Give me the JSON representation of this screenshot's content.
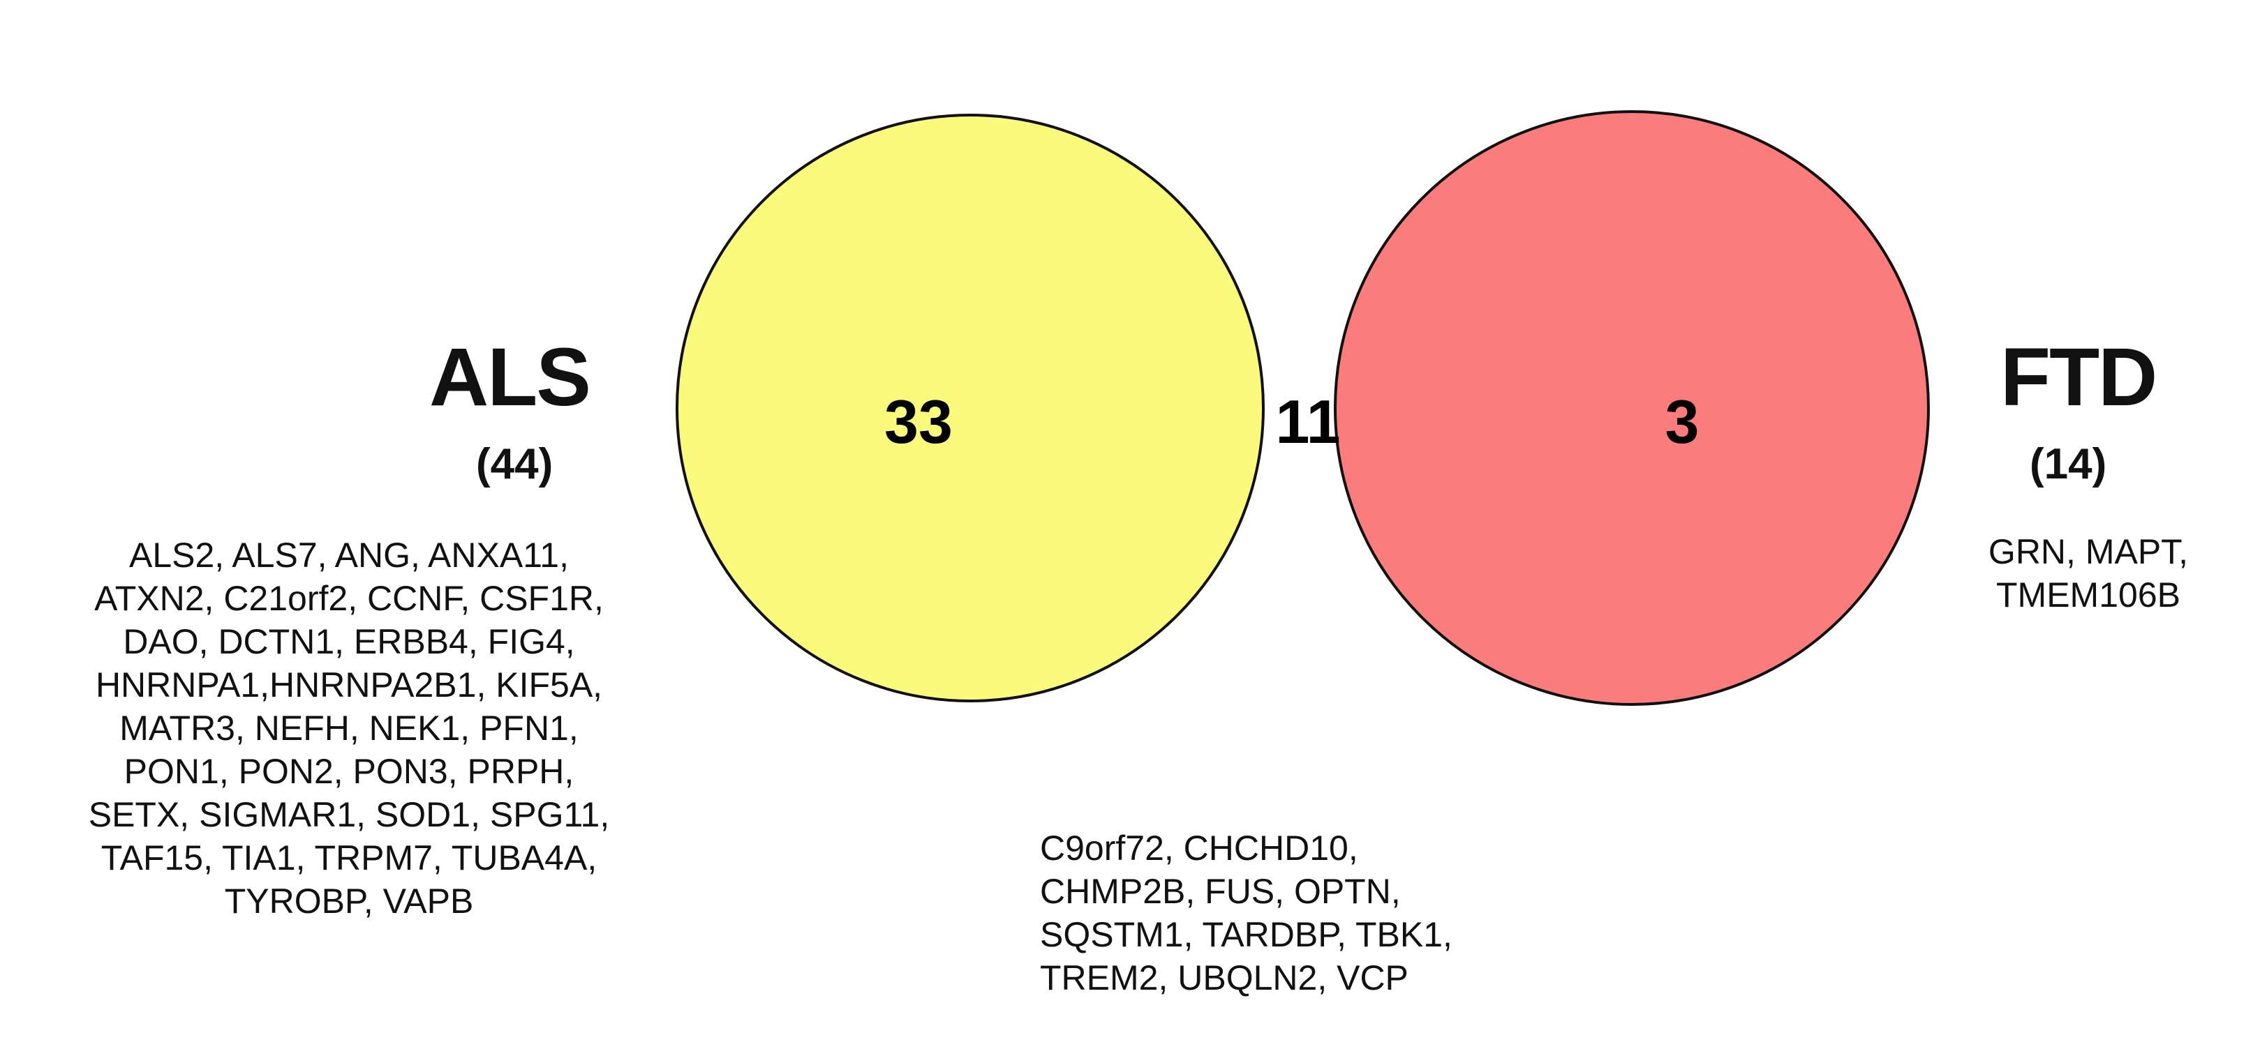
{
  "sets": {
    "als": {
      "name": "ALS",
      "total": "(44)",
      "color": "#fafa7c",
      "genes": [
        "ALS2, ALS7, ANG, ANXA11,",
        "ATXN2, C21orf2, CCNF, CSF1R,",
        "DAO, DCTN1, ERBB4, FIG4,",
        "HNRNPA1,HNRNPA2B1, KIF5A,",
        "MATR3, NEFH, NEK1, PFN1,",
        "PON1, PON2, PON3, PRPH,",
        "SETX, SIGMAR1, SOD1, SPG11,",
        "TAF15, TIA1, TRPM7, TUBA4A,",
        "TYROBP, VAPB"
      ]
    },
    "ftd": {
      "name": "FTD",
      "total": "(14)",
      "color": "#fb7c7c",
      "genes": [
        "GRN, MAPT,",
        "TMEM106B"
      ]
    },
    "overlap": {
      "color": "#fa7d40",
      "genes": [
        "C9orf72, CHCHD10,",
        "CHMP2B, FUS, OPTN,",
        "SQSTM1, TARDBP, TBK1,",
        "TREM2, UBQLN2, VCP"
      ]
    }
  },
  "regions": {
    "als_only": "33",
    "both": "11",
    "ftd_only": "3"
  }
}
